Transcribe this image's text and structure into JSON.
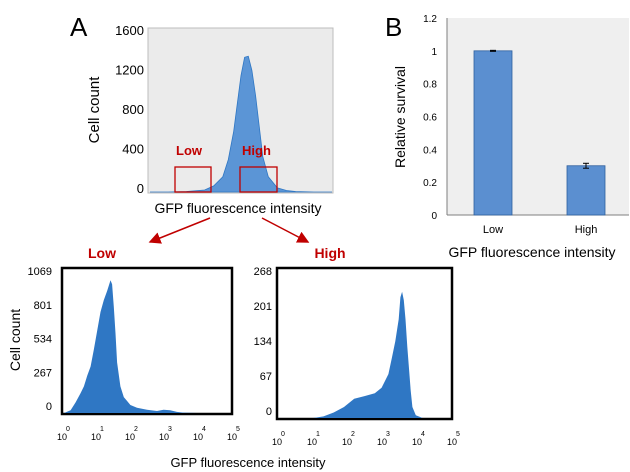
{
  "panels": {
    "a": "A",
    "b": "B"
  },
  "colors": {
    "histogram": "#2f77c4",
    "bar": "#5b8fd0",
    "gate": "#c00000",
    "plot_bg": "#ebebeb"
  },
  "chart_data": [
    {
      "id": "A-top",
      "type": "area",
      "ylabel": "Cell count",
      "xlabel": "GFP fluorescence intensity",
      "y_ticks": [
        "0",
        "400",
        "800",
        "1200",
        "1600"
      ],
      "ylim": [
        0,
        1600
      ],
      "gates": [
        "Low",
        "High"
      ],
      "x": [
        0,
        0.1,
        0.2,
        0.3,
        0.35,
        0.4,
        0.43,
        0.46,
        0.48,
        0.5,
        0.52,
        0.54,
        0.56,
        0.58,
        0.6,
        0.62,
        0.65,
        0.7,
        0.75,
        0.8,
        0.9,
        1
      ],
      "values": [
        0,
        0,
        5,
        20,
        60,
        150,
        320,
        600,
        880,
        1150,
        1330,
        1340,
        1200,
        950,
        650,
        350,
        150,
        40,
        15,
        5,
        0,
        0
      ]
    },
    {
      "id": "B",
      "type": "bar",
      "categories": [
        "Low",
        "High"
      ],
      "values": [
        1.0,
        0.3
      ],
      "errors": [
        0.003,
        0.015
      ],
      "ylabel": "Relative survival",
      "xlabel": "GFP fluorescence intensity",
      "y_ticks": [
        "0",
        "0.2",
        "0.4",
        "0.6",
        "0.8",
        "1",
        "1.2"
      ],
      "ylim": [
        0,
        1.2
      ]
    },
    {
      "id": "A-low",
      "type": "area",
      "title": "Low",
      "ylabel": "Cell count",
      "y_ticks": [
        "0",
        "267",
        "534",
        "801",
        "1069"
      ],
      "ylim": [
        0,
        1069
      ],
      "x_tick_exponents": [
        "0",
        "1",
        "2",
        "3",
        "4",
        "5"
      ],
      "x_tick_base": "10",
      "x": [
        0,
        0.2,
        0.35,
        0.5,
        0.6,
        0.7,
        0.8,
        0.9,
        1.0,
        1.1,
        1.2,
        1.3,
        1.4,
        1.45,
        1.5,
        1.55,
        1.6,
        1.7,
        1.8,
        1.9,
        2.0,
        2.2,
        2.5,
        2.8,
        3.0,
        3.2,
        3.4,
        3.6,
        4.0,
        5.0
      ],
      "values": [
        0,
        20,
        80,
        150,
        200,
        280,
        350,
        480,
        620,
        760,
        850,
        920,
        1000,
        970,
        800,
        600,
        380,
        200,
        120,
        90,
        60,
        40,
        25,
        15,
        25,
        20,
        8,
        3,
        0,
        0
      ]
    },
    {
      "id": "A-high",
      "type": "area",
      "title": "High",
      "y_ticks": [
        "0",
        "67",
        "134",
        "201",
        "268"
      ],
      "ylim": [
        0,
        268
      ],
      "x_tick_exponents": [
        "0",
        "1",
        "2",
        "3",
        "4",
        "5"
      ],
      "x_tick_base": "10",
      "x": [
        0,
        0.5,
        1.0,
        1.3,
        1.6,
        1.9,
        2.2,
        2.5,
        2.8,
        3.0,
        3.2,
        3.3,
        3.4,
        3.5,
        3.55,
        3.6,
        3.65,
        3.7,
        3.75,
        3.8,
        3.85,
        3.9,
        4.0,
        4.2,
        5.0
      ],
      "values": [
        0,
        0,
        0,
        3,
        10,
        20,
        35,
        40,
        45,
        55,
        80,
        110,
        140,
        180,
        220,
        230,
        215,
        180,
        130,
        90,
        50,
        20,
        5,
        0,
        0
      ]
    }
  ],
  "bottom_xlabel": "GFP fluorescence intensity"
}
